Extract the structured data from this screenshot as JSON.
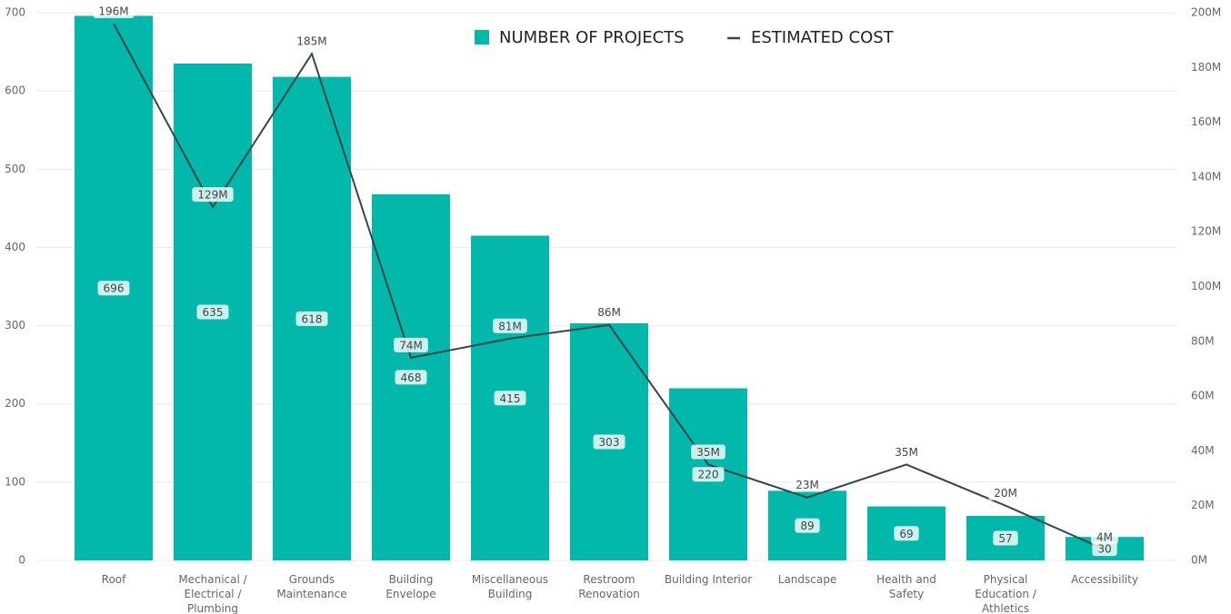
{
  "chart_data": {
    "type": "bar_line",
    "categories": [
      "Roof",
      "Mechanical / Electrical / Plumbing",
      "Grounds Maintenance",
      "Building Envelope",
      "Miscellaneous Building",
      "Restroom Renovation",
      "Building Interior",
      "Landscape",
      "Health and Safety",
      "Physical Education / Athletics",
      "Accessibility"
    ],
    "series": [
      {
        "name": "NUMBER OF PROJECTS",
        "color": "#01b8aa",
        "values": [
          696,
          635,
          618,
          468,
          415,
          303,
          220,
          89,
          69,
          57,
          30
        ]
      },
      {
        "name": "ESTIMATED COST",
        "color": "#374649",
        "axis": "y2",
        "values": [
          196000000,
          129000000,
          185000000,
          74000000,
          81000000,
          86000000,
          35000000,
          23000000,
          35000000,
          20000000,
          4000000
        ],
        "value_labels": [
          "196M",
          "129M",
          "185M",
          "74M",
          "81M",
          "86M",
          "35M",
          "23M",
          "35M",
          "20M",
          "4M"
        ]
      }
    ],
    "ylim": [
      0,
      700
    ],
    "yticks": [
      0,
      100,
      200,
      300,
      400,
      500,
      600,
      700
    ],
    "y2lim": [
      0,
      200000000
    ],
    "y2ticks": [
      {
        "value": 0,
        "label": "0M"
      },
      {
        "value": 20000000,
        "label": "20M"
      },
      {
        "value": 40000000,
        "label": "40M"
      },
      {
        "value": 60000000,
        "label": "60M"
      },
      {
        "value": 80000000,
        "label": "80M"
      },
      {
        "value": 100000000,
        "label": "100M"
      },
      {
        "value": 120000000,
        "label": "120M"
      },
      {
        "value": 140000000,
        "label": "140M"
      },
      {
        "value": 160000000,
        "label": "160M"
      },
      {
        "value": 180000000,
        "label": "180M"
      },
      {
        "value": 200000000,
        "label": "200M"
      }
    ],
    "grid": true
  }
}
